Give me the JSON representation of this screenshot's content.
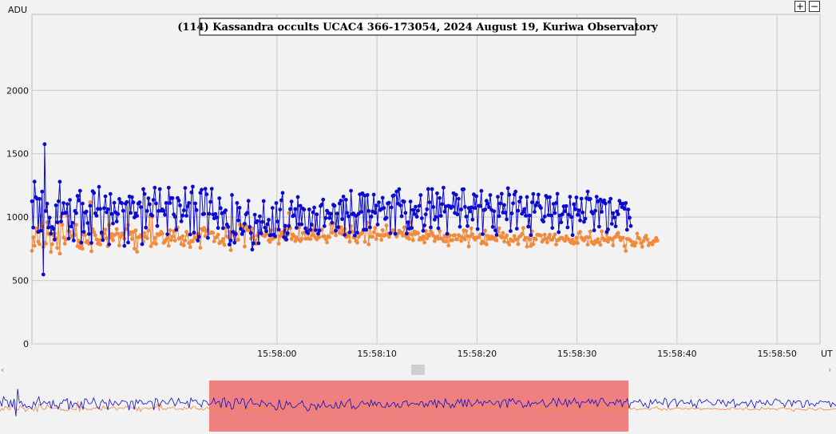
{
  "toolbar": {
    "zoom_in_label": "+",
    "zoom_out_label": "−"
  },
  "navigator": {
    "left_arrow": "‹",
    "right_arrow": "›"
  },
  "colors": {
    "series1": "#0a0ad2",
    "series2": "#f08a3c",
    "highlight": "#f08080",
    "grid": "#c8c8c8",
    "background": "#f2f2f2"
  },
  "chart_data": {
    "type": "line",
    "title": "(114) Kassandra occults UCAC4 366-173054, 2024 August 19, Kuriwa Observatory",
    "ylabel": "ADU",
    "xlabel": "UT",
    "ylim": [
      0,
      2600
    ],
    "y_ticks": [
      0,
      500,
      1000,
      1500,
      2000
    ],
    "y_tick_labels": [
      "0",
      "500",
      "1000",
      "1500",
      "2000"
    ],
    "x_range_seconds": [
      -24.5,
      54.3
    ],
    "x_ticks": [
      0,
      10,
      20,
      30,
      40,
      50
    ],
    "x_tick_labels": [
      "15:58:00",
      "15:58:10",
      "15:58:20",
      "15:58:30",
      "15:58:40",
      "15:58:50"
    ],
    "sample_interval_seconds": 0.1266,
    "grid": true,
    "series": [
      {
        "values": [
          1125,
          918,
          1280,
          1157,
          1146,
          883,
          1144,
          893,
          1201,
          547,
          1576,
          1048,
          1106,
          918,
          996,
          870,
          922,
          907,
          823,
          1093,
          960,
          1125,
          1279,
          966,
          1029,
          1111,
          1032,
          1035,
          1103,
          831,
          1136,
          926,
          955,
          816,
          1049,
          1031,
          1168,
          1131,
          1208,
          799,
          1107,
          884,
          1036,
          1044,
          953,
          867,
          1090,
          797,
          1204,
          1191,
          1030,
          1011,
          1065,
          1239,
          1065,
          879,
          819,
          1071,
          1164,
          1039,
          1062,
          785,
          1183,
          1025,
          950,
          1113,
          1038,
          966,
          1024,
          1143,
          1116,
          1110,
          1050,
          773,
          1107,
          1119,
          800,
          1163,
          1034,
          1158,
          1116,
          998,
          1029,
          1010,
          1106,
          1117,
          1079,
          786,
          1221,
          1183,
          917,
          1049,
          1149,
          1102,
          1020,
          1012,
          1136,
          1232,
          1108,
          930,
          1049,
          1221,
          1051,
          1061,
          1048,
          1018,
          1112,
          865,
          1232,
          1111,
          1150,
          1150,
          1021,
          1002,
          900,
          1151,
          1131,
          1093,
          967,
          1012,
          1053,
          1230,
          1011,
          1086,
          1112,
          863,
          1195,
          1241,
          878,
          1108,
          1056,
          815,
          845,
          1192,
          1216,
          1023,
          1025,
          1224,
          1180,
          836,
          1027,
          1120,
          1224,
          1021,
          990,
          1024,
          997,
          915,
          1149,
          1071,
          1030,
          913,
          1040,
          1053,
          942,
          923,
          784,
          816,
          1175,
          883,
          798,
          866,
          1112,
          974,
          1074,
          908,
          866,
          888,
          948,
          1021,
          1034,
          1128,
          923,
          874,
          744,
          793,
          1019,
          959,
          969,
          794,
          1006,
          872,
          962,
          1127,
          917,
          889,
          944,
          979,
          856,
          859,
          1073,
          861,
          850,
          1111,
          965,
          901,
          1060,
          1133,
          1191,
          842,
          932,
          823,
          873,
          930,
          1063,
          1123,
          1008,
          1014,
          1064,
          916,
          1159,
          944,
          1089,
          943,
          1068,
          1060,
          911,
          885,
          874,
          1061,
          900,
          941,
          1038,
          1076,
          898,
          1022,
          870,
          894,
          1087,
          1099,
          1138,
          929,
          993,
          1051,
          1034,
          993,
          1027,
          957,
          1097,
          1090,
          893,
          1028,
          921,
          1108,
          1130,
          984,
          1162,
          860,
          1137,
          1034,
          1006,
          880,
          1208,
          1023,
          1028,
          855,
          1009,
          878,
          1026,
          1180,
          1042,
          1188,
          901,
          1170,
          900,
          1175,
          1049,
          919,
          1004,
          1045,
          1178,
          1034,
          1091,
          942,
          1116,
          1056,
          1063,
          1153,
          1072,
          985,
          994,
          1108,
          1113,
          873,
          1077,
          1167,
          1172,
          869,
          1201,
          1107,
          1220,
          1093,
          1007,
          1126,
          1122,
          1034,
          870,
          959,
          910,
          1123,
          915,
          1057,
          1024,
          1082,
          1003,
          1052,
          1089,
          1174,
          991,
          892,
          935,
          1022,
          1062,
          1222,
          1117,
          920,
          1221,
          1080,
          980,
          1001,
          1188,
          912,
          1151,
          1010,
          1103,
          1232,
          1043,
          1085,
          869,
          1089,
          1085,
          1072,
          1083,
          1189,
          1033,
          1176,
          1022,
          1145,
          924,
          1061,
          1219,
          1220,
          1081,
          1005,
          930,
          1072,
          1045,
          1077,
          980,
          1179,
          1072,
          1165,
          906,
          1089,
          1088,
          1207,
          866,
          1055,
          1061,
          1129,
          1105,
          1078,
          1174,
          1057,
          923,
          1046,
          896,
          860,
          1160,
          1008,
          1108,
          1184,
          1036,
          1096,
          1035,
          983,
          1228,
          1176,
          890,
          1029,
          1109,
          1179,
          1201,
          909,
          1051,
          1123,
          1155,
          1027,
          1042,
          1064,
          1011,
          1159,
          925,
          1012,
          858,
          1116,
          1182,
          1041,
          1093,
          1113,
          1178,
          1088,
          1072,
          978,
          965,
          1005,
          1168,
          1156,
          1016,
          1158,
          1013,
          915,
          1104,
          1032,
          1112,
          1184,
          881,
          1012,
          959,
          1023,
          1085,
          1046,
          1087,
          919,
          1020,
          1160,
          1001,
          858,
          1102,
          1062,
          1155,
          1018,
          1054,
          974,
          1146,
          1037,
          963,
          988,
          1149,
          1202,
          1140,
          1144,
          1042,
          1028,
          896,
          1050,
          1161,
          1124,
          925,
          1138,
          1042,
          1120,
          1132,
          1107,
          883,
          903,
          1120,
          1145,
          947,
          1032,
          997,
          927,
          1045,
          1023,
          1129,
          1108,
          1079,
          1106,
          1066,
          1111,
          900,
          1060,
          995,
          930
        ]
      },
      {
        "values": [
          734,
          841,
          774,
          912,
          885,
          806,
          786,
          1009,
          926,
          765,
          800,
          791,
          960,
          871,
          861,
          725,
          786,
          856,
          870,
          834,
          757,
          952,
          712,
          1003,
          940,
          839,
          791,
          825,
          1010,
          890,
          885,
          853,
          844,
          852,
          859,
          940,
          771,
          814,
          757,
          777,
          751,
          861,
          859,
          802,
          810,
          789,
          1118,
          731,
          906,
          881,
          857,
          824,
          791,
          819,
          784,
          865,
          837,
          868,
          903,
          834,
          770,
          938,
          837,
          866,
          817,
          858,
          865,
          906,
          869,
          776,
          845,
          871,
          861,
          830,
          907,
          905,
          938,
          865,
          881,
          827,
          882,
          751,
          896,
          727,
          841,
          841,
          859,
          846,
          808,
          875,
          844,
          833,
          894,
          1005,
          771,
          1003,
          796,
          838,
          788,
          866,
          859,
          863,
          884,
          870,
          797,
          807,
          821,
          838,
          774,
          897,
          819,
          846,
          889,
          815,
          918,
          918,
          831,
          834,
          786,
          849,
          777,
          816,
          883,
          859,
          796,
          763,
          813,
          809,
          870,
          834,
          838,
          867,
          865,
          758,
          907,
          896,
          915,
          850,
          893,
          899,
          872,
          874,
          880,
          877,
          809,
          838,
          843,
          862,
          794,
          805,
          804,
          828,
          780,
          918,
          848,
          842,
          883,
          739,
          870,
          878,
          855,
          876,
          818,
          822,
          942,
          922,
          872,
          941,
          768,
          935,
          897,
          904,
          894,
          831,
          913,
          848,
          817,
          789,
          854,
          877,
          890,
          887,
          858,
          855,
          849,
          867,
          943,
          816,
          804,
          898,
          827,
          848,
          839,
          904,
          908,
          790,
          851,
          877,
          852,
          888,
          822,
          925,
          860,
          1033,
          913,
          827,
          863,
          849,
          811,
          839,
          825,
          920,
          811,
          827,
          874,
          878,
          830,
          912,
          830,
          891,
          827,
          895,
          856,
          920,
          837,
          824,
          846,
          842,
          901,
          901,
          848,
          850,
          827,
          801,
          849,
          842,
          943,
          877,
          950,
          884,
          856,
          904,
          907,
          875,
          921,
          865,
          895,
          906,
          843,
          870,
          850,
          806,
          929,
          885,
          840,
          838,
          812,
          798,
          844,
          862,
          868,
          882,
          896,
          805,
          910,
          957,
          785,
          921,
          846,
          844,
          881,
          915,
          827,
          863,
          858,
          859,
          820,
          898,
          853,
          858,
          935,
          866,
          844,
          867,
          881,
          897,
          892,
          865,
          846,
          868,
          893,
          877,
          879,
          853,
          919,
          858,
          839,
          870,
          828,
          958,
          864,
          817,
          887,
          866,
          878,
          875,
          822,
          835,
          825,
          847,
          799,
          891,
          832,
          863,
          853,
          892,
          874,
          853,
          811,
          835,
          846,
          830,
          890,
          832,
          831,
          810,
          854,
          808,
          844,
          776,
          857,
          817,
          817,
          856,
          858,
          826,
          825,
          858,
          850,
          812,
          840,
          896,
          824,
          891,
          850,
          768,
          848,
          912,
          865,
          837,
          822,
          840,
          840,
          841,
          864,
          792,
          807,
          797,
          894,
          785,
          852,
          830,
          828,
          848,
          830,
          837,
          820,
          816,
          886,
          912,
          849,
          839,
          875,
          807,
          840,
          856,
          801,
          784,
          825,
          816,
          810,
          851,
          826,
          824,
          787,
          845,
          852,
          867,
          914,
          821,
          836,
          767,
          834,
          825,
          772,
          888,
          786,
          831,
          824,
          861,
          861,
          857,
          855,
          806,
          821,
          861,
          829,
          800,
          841,
          862,
          821,
          822,
          842,
          864,
          784,
          818,
          820,
          831,
          838,
          835,
          825,
          813,
          849,
          830,
          823,
          809,
          797,
          822,
          790,
          801,
          838,
          796,
          874,
          883,
          838,
          823,
          816,
          837,
          843,
          783,
          839,
          887,
          806,
          794,
          786,
          812,
          803,
          826,
          798,
          781,
          888,
          832,
          819,
          819,
          867,
          806,
          834,
          831,
          824,
          777,
          840,
          844,
          863,
          876,
          842,
          818,
          835,
          837,
          772,
          733,
          828,
          827,
          820,
          813,
          779,
          802,
          774,
          797,
          870,
          837,
          828,
          795,
          766,
          812,
          837,
          853,
          824,
          778,
          796,
          795,
          785,
          812,
          809,
          836,
          815
        ]
      }
    ]
  }
}
